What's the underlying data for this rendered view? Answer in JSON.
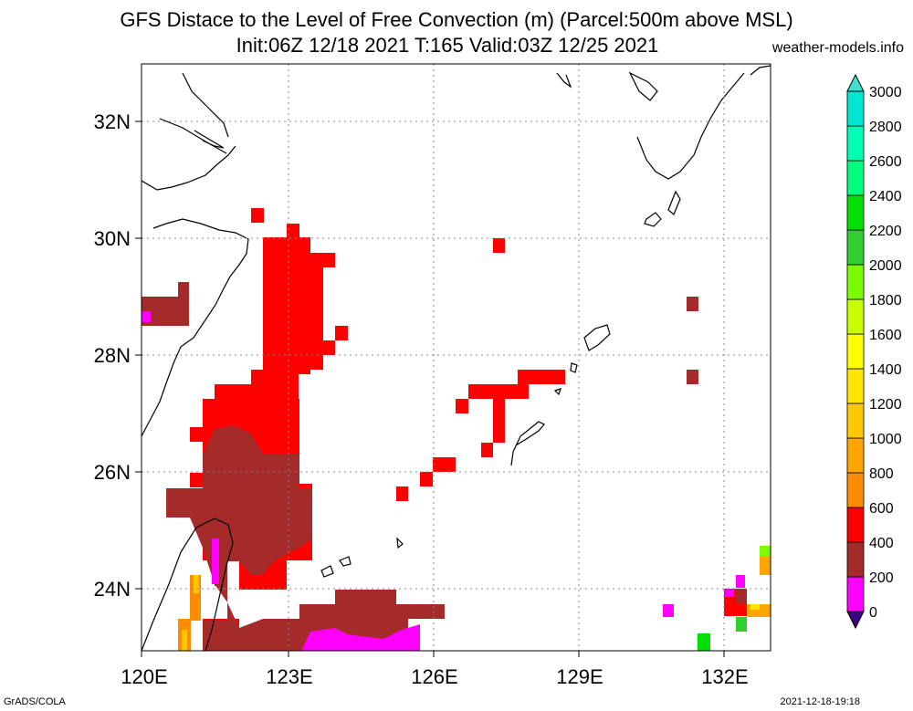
{
  "header": {
    "title_line1": "GFS Distace to the Level of Free Convection (m) (Parcel:500m above MSL)",
    "title_line2": "Init:06Z 12/18 2021 T:165 Valid:03Z 12/25 2021",
    "site": "weather-models.info"
  },
  "footer": {
    "left": "GrADS/COLA",
    "right": "2021-12-18-19:18"
  },
  "map": {
    "lon_range": [
      120,
      133
    ],
    "lat_range": [
      23,
      33
    ],
    "lon_ticks": [
      "120E",
      "123E",
      "126E",
      "129E",
      "132E"
    ],
    "lat_ticks": [
      "24N",
      "26N",
      "28N",
      "30N",
      "32N"
    ],
    "gridlines": "dotted"
  },
  "colorbar": {
    "labels": [
      "0",
      "200",
      "400",
      "600",
      "800",
      "1000",
      "1200",
      "1400",
      "1600",
      "1800",
      "2000",
      "2200",
      "2400",
      "2600",
      "2800",
      "3000"
    ],
    "colors": [
      "#3c0082",
      "#ff00ff",
      "#a52a2a",
      "#ff0000",
      "#ff8c00",
      "#ffa500",
      "#ffc800",
      "#ffe600",
      "#ffff00",
      "#c8ff00",
      "#7cfc00",
      "#32cd32",
      "#00e000",
      "#00ff7f",
      "#00ffb4",
      "#00e6d2",
      "#40e0d0"
    ]
  }
}
